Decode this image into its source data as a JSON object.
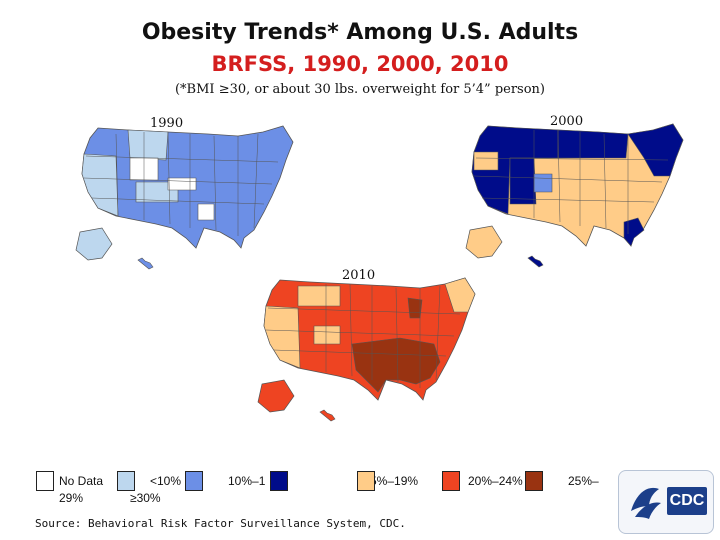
{
  "title": "Obesity Trends* Among U.S. Adults",
  "subtitle_red": "BRFSS, 1990, 2000, 2010",
  "footnote": "(*BMI ≥30, or about 30 lbs. overweight for 5’4” person)",
  "maps": [
    {
      "year": "1990"
    },
    {
      "year": "2000"
    },
    {
      "year": "2010"
    }
  ],
  "legend": [
    {
      "label": "No Data",
      "color": "#ffffff"
    },
    {
      "label": "<10%",
      "color": "#bdd7ee"
    },
    {
      "label": "10%–1",
      "color": "#6c8fe6"
    },
    {
      "label": "5%–19%",
      "color": "#000c8a"
    },
    {
      "label": "20%–24%",
      "color": "#ffcc88"
    },
    {
      "label": "25%–",
      "color": "#ee4422"
    },
    {
      "label": "29%",
      "color": ""
    },
    {
      "label": "≥30%",
      "color": "#993311"
    }
  ],
  "source": "Source: Behavioral Risk Factor Surveillance System, CDC.",
  "logo_text": "CDC",
  "colors": {
    "title_red": "#d41e1e",
    "nodata": "#ffffff",
    "lt10": "#bdd7ee",
    "p10_14": "#6c8fe6",
    "p15_19": "#000c8a",
    "p20_24": "#ffcc88",
    "p25_29": "#ee4422",
    "p30plus": "#993311",
    "border": "#555555"
  }
}
